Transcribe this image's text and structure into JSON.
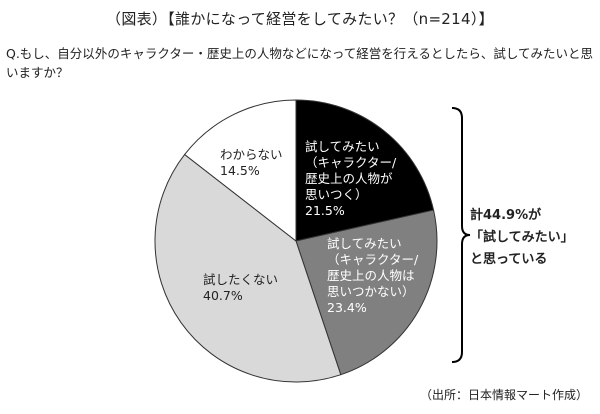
{
  "header": {
    "title": "（図表）【誰かになって経営をしてみたい？（n=214）】",
    "question": "Q.もし、自分以外のキャラクター・歴史上の人物などになって経営を行えるとしたら、試してみたいと思いますか？"
  },
  "labels": {
    "slice0": "試してみたい\n（キャラクター/\n歴史上の人物が\n思いつく）\n21.5%",
    "slice1": "試してみたい\n（キャラクター/\n歴史上の人物は\n思いつかない）\n23.4%",
    "slice2": "試したくない\n40.7%",
    "slice3": "わからない\n14.5%"
  },
  "annotation": {
    "summary": "計44.9%が\n「試してみたい」\nと思っている"
  },
  "footer": {
    "source": "（出所：日本情報マート作成）"
  },
  "chart_data": {
    "type": "pie",
    "title": "誰かになって経営をしてみたい？（n=214）",
    "categories": [
      "試してみたい（キャラクター/歴史上の人物が思いつく）",
      "試してみたい（キャラクター/歴史上の人物は思いつかない）",
      "試したくない",
      "わからない"
    ],
    "values": [
      21.5,
      23.4,
      40.7,
      14.5
    ],
    "colors": [
      "#000000",
      "#808080",
      "#d9d9d9",
      "#ffffff"
    ],
    "start_angle": "12 o'clock, clockwise",
    "annotations": [
      "計44.9%が「試してみたい」と思っている"
    ],
    "n": 214
  }
}
